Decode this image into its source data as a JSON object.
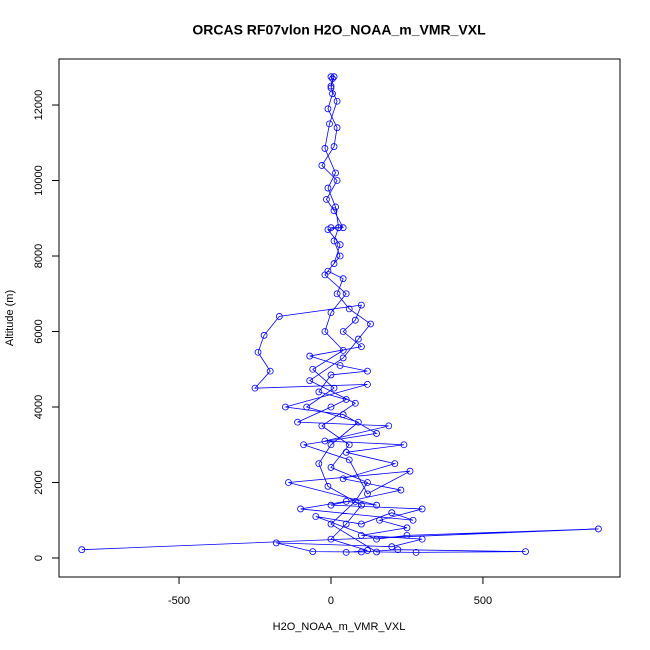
{
  "chart_data": {
    "type": "line",
    "title": "ORCAS RF07vlon H2O_NOAA_m_VMR_VXL",
    "x_label": "H2O_NOAA_m_VMR_VXL",
    "y_label": "Altitude (m)",
    "color": "#0000ff",
    "xlim": [
      -895,
      951
    ],
    "ylim": [
      -503,
      13219
    ],
    "xticks": [
      -500,
      0,
      500
    ],
    "yticks": [
      0,
      2000,
      4000,
      6000,
      8000,
      10000,
      12000
    ],
    "x": [
      -820,
      880,
      250,
      150,
      -50,
      100,
      200,
      270,
      -100,
      50,
      150,
      -140,
      260,
      120,
      60,
      -90,
      150,
      40,
      -150,
      120,
      -250,
      -200,
      -240,
      -220,
      -170,
      100,
      80,
      40,
      100,
      -70,
      30,
      120,
      0,
      -40,
      50,
      0,
      -110,
      190,
      -20,
      240,
      50,
      210,
      40,
      230,
      0,
      300,
      160,
      250,
      100,
      300,
      200,
      -180,
      -60,
      100,
      220,
      640,
      280,
      150,
      0,
      80,
      120,
      0,
      60,
      -30,
      80,
      -70,
      40,
      90,
      130,
      60,
      20,
      40,
      -10,
      30,
      10,
      25,
      0,
      40,
      10,
      -15,
      20,
      -30,
      10,
      20,
      -10,
      5,
      0,
      5,
      0,
      10,
      0,
      20,
      -5,
      -20,
      15,
      -10,
      15,
      25,
      -10,
      30,
      10,
      -20,
      50,
      0,
      -20,
      40,
      -60,
      10,
      -80,
      90,
      0,
      -40,
      -10,
      100,
      50,
      0,
      120,
      50
    ],
    "values": [
      220,
      770,
      600,
      500,
      1100,
      900,
      1200,
      1000,
      1300,
      1500,
      1400,
      2000,
      2300,
      1700,
      2600,
      3000,
      3300,
      3800,
      4000,
      4600,
      4500,
      4950,
      5450,
      5900,
      6400,
      6700,
      6300,
      6000,
      5600,
      5350,
      5100,
      4950,
      4850,
      4400,
      4200,
      4000,
      3600,
      3500,
      3100,
      3000,
      2800,
      2500,
      2100,
      1800,
      1400,
      1300,
      1000,
      800,
      600,
      500,
      300,
      400,
      170,
      160,
      220,
      170,
      150,
      160,
      900,
      1500,
      2000,
      2400,
      3000,
      3500,
      4100,
      4700,
      5300,
      5800,
      6200,
      6600,
      7000,
      7400,
      7600,
      8000,
      8400,
      8750,
      8750,
      8750,
      9200,
      9500,
      10000,
      10400,
      10900,
      11400,
      11900,
      12300,
      12500,
      12700,
      12750,
      12750,
      12450,
      12100,
      11500,
      10850,
      10200,
      9800,
      9300,
      8750,
      8700,
      8300,
      7800,
      7500,
      7000,
      6500,
      6000,
      5500,
      5000,
      4500,
      4000,
      3600,
      3000,
      2500,
      1900,
      1400,
      900,
      500,
      200,
      150
    ]
  }
}
